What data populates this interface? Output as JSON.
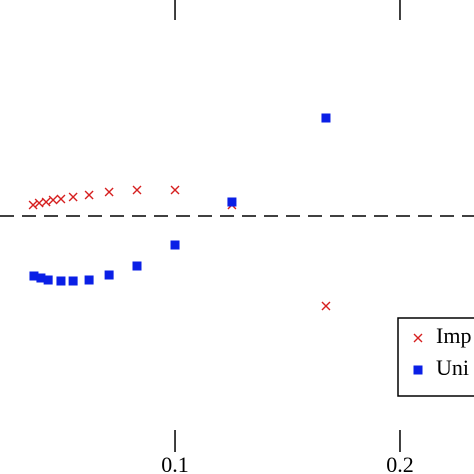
{
  "chart_data": {
    "type": "scatter",
    "xlim": [
      0.0222,
      0.2329
    ],
    "ylim": [
      -2.58,
      2.16
    ],
    "xticks": [
      0.1,
      0.2
    ],
    "reference_line": 0,
    "series": [
      {
        "name": "Imp",
        "color": "#d62020",
        "marker": "x",
        "x": [
          0.0369,
          0.0396,
          0.0427,
          0.0458,
          0.0493,
          0.0547,
          0.0618,
          0.0707,
          0.0831,
          0.1,
          0.1253,
          0.1671
        ],
        "values": [
          0.11,
          0.13,
          0.14,
          0.16,
          0.17,
          0.19,
          0.21,
          0.24,
          0.26,
          0.26,
          0.11,
          -0.9
        ]
      },
      {
        "name": "Uni",
        "color": "#0a1fe6",
        "marker": "square",
        "x": [
          0.0373,
          0.0404,
          0.0436,
          0.0493,
          0.0547,
          0.0618,
          0.0707,
          0.0831,
          0.1,
          0.1253,
          0.1671
        ],
        "values": [
          -0.6,
          -0.62,
          -0.64,
          -0.65,
          -0.65,
          -0.64,
          -0.59,
          -0.5,
          -0.29,
          0.14,
          0.98
        ]
      }
    ]
  }
}
